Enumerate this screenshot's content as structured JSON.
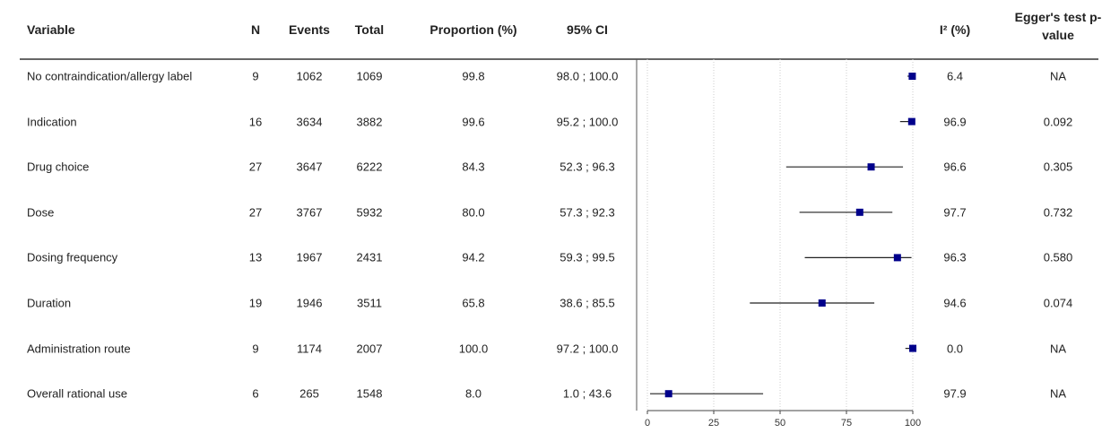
{
  "chart_data": {
    "type": "forest",
    "headers": [
      "Variable",
      "N",
      "Events",
      "Total",
      "Proportion (%)",
      "95% CI",
      "I² (%)",
      "Egger's test p-value"
    ],
    "categories": [
      "No contraindication/allergy label",
      "Indication",
      "Drug choice",
      "Dose",
      "Dosing frequency",
      "Duration",
      "Administration route",
      "Overall rational use"
    ],
    "n": [
      9,
      16,
      27,
      27,
      13,
      19,
      9,
      6
    ],
    "events": [
      1062,
      3634,
      3647,
      3767,
      1967,
      1946,
      1174,
      265
    ],
    "total": [
      1069,
      3882,
      6222,
      5932,
      2431,
      3511,
      2007,
      1548
    ],
    "values": [
      99.8,
      99.6,
      84.3,
      80.0,
      94.2,
      65.8,
      100.0,
      8.0
    ],
    "value_labels": [
      "99.8",
      "99.6",
      "84.3",
      "80.0",
      "94.2",
      "65.8",
      "100.0",
      "8.0"
    ],
    "ci_lower": [
      98.0,
      95.2,
      52.3,
      57.3,
      59.3,
      38.6,
      97.2,
      1.0
    ],
    "ci_upper": [
      100.0,
      100.0,
      96.3,
      92.3,
      99.5,
      85.5,
      100.0,
      43.6
    ],
    "ci_labels": [
      "98.0 ; 100.0",
      "95.2 ; 100.0",
      "52.3 ; 96.3",
      "57.3 ; 92.3",
      "59.3 ; 99.5",
      "38.6 ; 85.5",
      "97.2 ; 100.0",
      "1.0 ; 43.6"
    ],
    "i2": [
      "6.4",
      "96.9",
      "96.6",
      "97.7",
      "96.3",
      "94.6",
      "0.0",
      "97.9"
    ],
    "egger": [
      "NA",
      "0.092",
      "0.305",
      "0.732",
      "0.580",
      "0.074",
      "NA",
      "NA"
    ],
    "xlim": [
      0,
      100
    ],
    "xticks": [
      0,
      25,
      50,
      75,
      100
    ],
    "color": "#00008b",
    "grid": true
  }
}
